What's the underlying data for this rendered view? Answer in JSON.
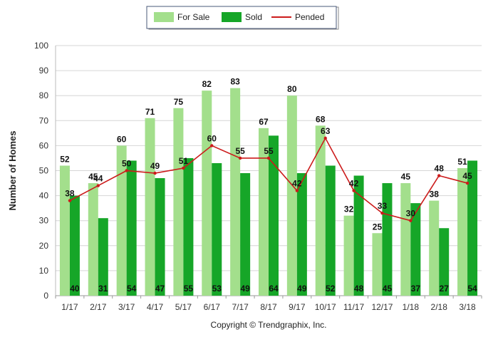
{
  "chart_data": {
    "type": "bar",
    "categories": [
      "1/17",
      "2/17",
      "3/17",
      "4/17",
      "5/17",
      "6/17",
      "7/17",
      "8/17",
      "9/17",
      "10/17",
      "11/17",
      "12/17",
      "1/18",
      "2/18",
      "3/18"
    ],
    "series": [
      {
        "name": "For Sale",
        "kind": "bar",
        "color": "#a3df8c",
        "values": [
          52,
          45,
          60,
          71,
          75,
          82,
          83,
          67,
          80,
          68,
          32,
          25,
          45,
          38,
          51
        ]
      },
      {
        "name": "Sold",
        "kind": "bar",
        "color": "#16a628",
        "values": [
          40,
          31,
          54,
          47,
          55,
          53,
          49,
          64,
          49,
          52,
          48,
          45,
          37,
          27,
          54
        ]
      },
      {
        "name": "Pended",
        "kind": "line",
        "color": "#cc1b1b",
        "values": [
          38,
          44,
          50,
          49,
          51,
          60,
          55,
          55,
          42,
          63,
          42,
          33,
          30,
          48,
          45
        ]
      }
    ],
    "title": "",
    "xlabel": "",
    "ylabel": "Number of Homes",
    "ylim": [
      0,
      100
    ],
    "yticks": [
      0,
      10,
      20,
      30,
      40,
      50,
      60,
      70,
      80,
      90,
      100
    ],
    "grid": true,
    "legend_position": "top-center",
    "copyright": "Copyright © Trendgraphix, Inc."
  }
}
